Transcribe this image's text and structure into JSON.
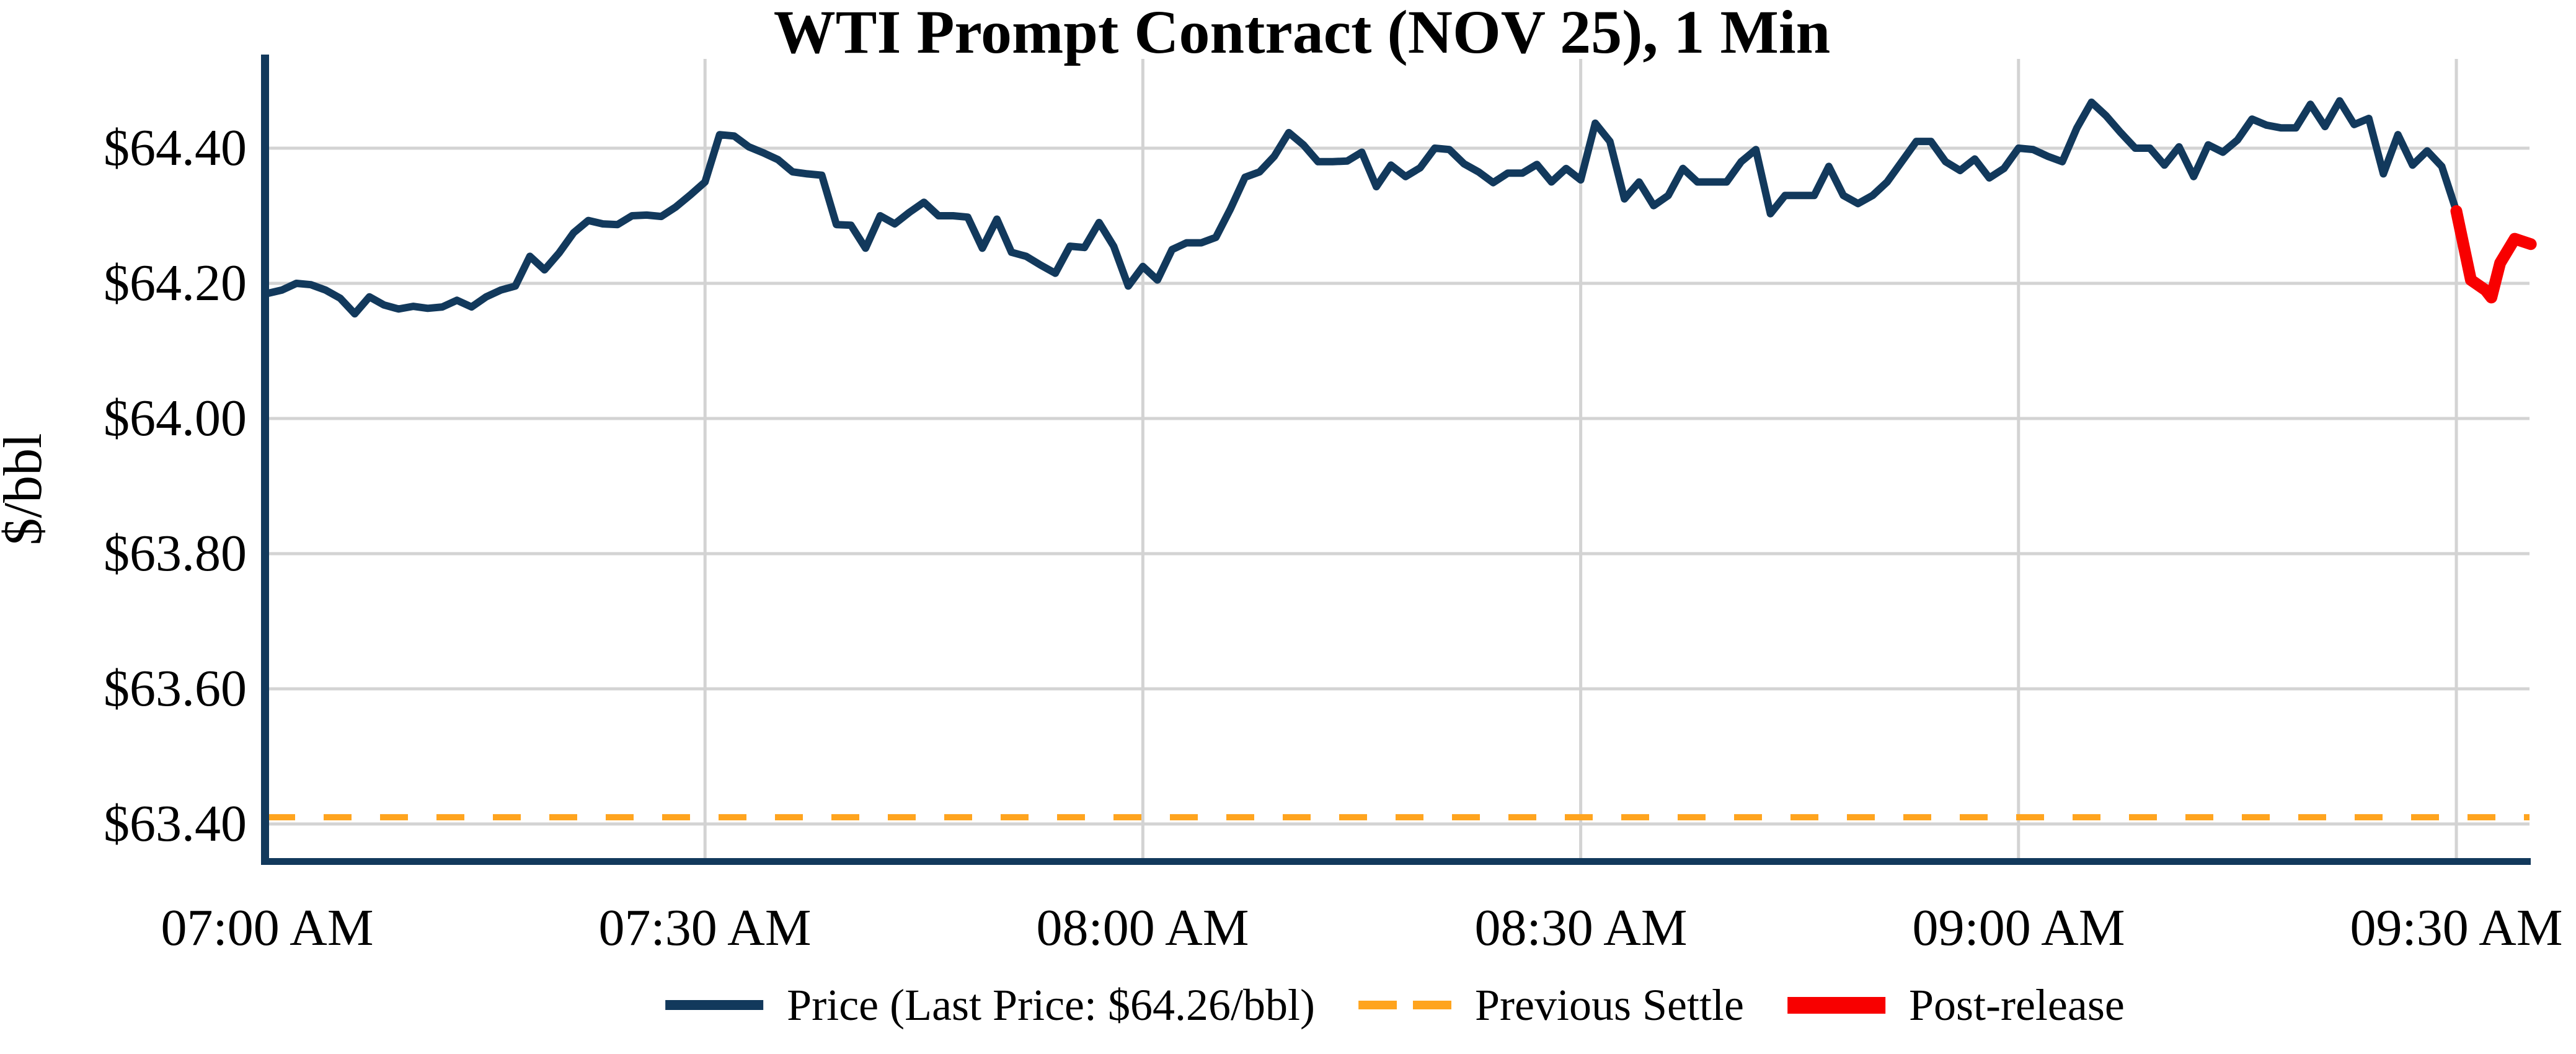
{
  "title": "WTI Prompt Contract (NOV 25), 1 Min",
  "y_axis_label": "$/bbl",
  "legend": {
    "price_label": "Price (Last Price: $64.26/bbl)",
    "settle_label": "Previous Settle",
    "post_label": "Post-release"
  },
  "colors": {
    "price": "#12395c",
    "post_release": "#f80000",
    "previous_settle": "#ffa41e",
    "gridline": "#d3d3d3",
    "axis": "#12395c",
    "text": "#000000"
  },
  "chart_data": {
    "type": "line",
    "title": "WTI Prompt Contract (NOV 25), 1 Min",
    "xlabel": "",
    "ylabel": "$/bbl",
    "grid": true,
    "legend_position": "bottom-center",
    "x_unit": "minutes after 07:00 AM",
    "x_ticks_minutes": [
      0,
      30,
      60,
      90,
      120,
      150
    ],
    "x_tick_labels": [
      "07:00 AM",
      "07:30 AM",
      "08:00 AM",
      "08:30 AM",
      "09:00 AM",
      "09:30 AM"
    ],
    "y_tick_values": [
      63.4,
      63.6,
      63.8,
      64.0,
      64.2,
      64.4
    ],
    "y_tick_labels": [
      "$63.40",
      "$63.60",
      "$63.80",
      "$64.00",
      "$64.20",
      "$64.40"
    ],
    "ylim": [
      63.345,
      64.525
    ],
    "xlim_minutes": [
      0,
      158
    ],
    "previous_settle_value": 63.41,
    "last_price": 64.26,
    "series": [
      {
        "name": "Price (Last Price: $64.26/bbl)",
        "style": "solid",
        "x": [
          0,
          1,
          2,
          3,
          4,
          5,
          6,
          7,
          8,
          9,
          10,
          11,
          12,
          13,
          14,
          15,
          16,
          17,
          18,
          19,
          20,
          21,
          22,
          23,
          24,
          25,
          26,
          27,
          28,
          29,
          30,
          31,
          32,
          33,
          34,
          35,
          36,
          37,
          38,
          39,
          40,
          41,
          42,
          43,
          44,
          45,
          46,
          47,
          48,
          49,
          50,
          51,
          52,
          53,
          54,
          55,
          56,
          57,
          58,
          59,
          60,
          61,
          62,
          63,
          64,
          65,
          66,
          67,
          68,
          69,
          70,
          71,
          72,
          73,
          74,
          75,
          76,
          77,
          78,
          79,
          80,
          81,
          82,
          83,
          84,
          85,
          86,
          87,
          88,
          89,
          90,
          91,
          92,
          93,
          94,
          95,
          96,
          97,
          98,
          99,
          100,
          101,
          102,
          103,
          104,
          105,
          106,
          107,
          108,
          109,
          110,
          111,
          112,
          113,
          114,
          115,
          116,
          117,
          118,
          119,
          120,
          121,
          122,
          123,
          124,
          125,
          126,
          127,
          128,
          129,
          130,
          131,
          132,
          133,
          134,
          135,
          136,
          137,
          138,
          139,
          140,
          141,
          142,
          143,
          144,
          145,
          146,
          147,
          148,
          149,
          150
        ],
        "values": [
          64.185,
          64.19,
          64.2,
          64.198,
          64.19,
          64.178,
          64.155,
          64.18,
          64.168,
          64.162,
          64.166,
          64.163,
          64.165,
          64.175,
          64.165,
          64.18,
          64.19,
          64.196,
          64.24,
          64.22,
          64.245,
          64.275,
          64.293,
          64.288,
          64.287,
          64.3,
          64.301,
          64.299,
          64.313,
          64.331,
          64.35,
          64.42,
          64.418,
          64.402,
          64.393,
          64.383,
          64.365,
          64.362,
          64.36,
          64.287,
          64.286,
          64.252,
          64.3,
          64.288,
          64.305,
          64.32,
          64.3,
          64.3,
          64.298,
          64.252,
          64.295,
          64.246,
          64.24,
          64.227,
          64.215,
          64.255,
          64.253,
          64.29,
          64.255,
          64.196,
          64.225,
          64.205,
          64.25,
          64.26,
          64.26,
          64.268,
          64.31,
          64.357,
          64.365,
          64.388,
          64.423,
          64.405,
          64.38,
          64.38,
          64.381,
          64.394,
          64.343,
          64.375,
          64.358,
          64.371,
          64.4,
          64.398,
          64.377,
          64.365,
          64.349,
          64.363,
          64.363,
          64.376,
          64.35,
          64.37,
          64.353,
          64.437,
          64.41,
          64.325,
          64.35,
          64.315,
          64.33,
          64.37,
          64.35,
          64.35,
          64.35,
          64.38,
          64.398,
          64.303,
          64.33,
          64.33,
          64.33,
          64.373,
          64.33,
          64.318,
          64.33,
          64.35,
          64.38,
          64.41,
          64.41,
          64.38,
          64.367,
          64.384,
          64.356,
          64.37,
          64.4,
          64.398,
          64.388,
          64.38,
          64.43,
          64.468,
          64.448,
          64.423,
          64.4,
          64.4,
          64.375,
          64.402,
          64.358,
          64.405,
          64.394,
          64.412,
          64.443,
          64.434,
          64.43,
          64.43,
          64.465,
          64.432,
          64.47,
          64.435,
          64.444,
          64.362,
          64.42,
          64.375,
          64.396,
          64.373,
          64.307
        ]
      },
      {
        "name": "Post-release",
        "style": "solid-thick",
        "x": [
          150,
          151,
          152,
          152.4,
          153,
          154,
          155.1
        ],
        "values": [
          64.307,
          64.205,
          64.19,
          64.179,
          64.23,
          64.266,
          64.258
        ]
      },
      {
        "name": "Previous Settle",
        "style": "dashed",
        "x": [
          0,
          155.1
        ],
        "values": [
          63.41,
          63.41
        ]
      }
    ]
  }
}
